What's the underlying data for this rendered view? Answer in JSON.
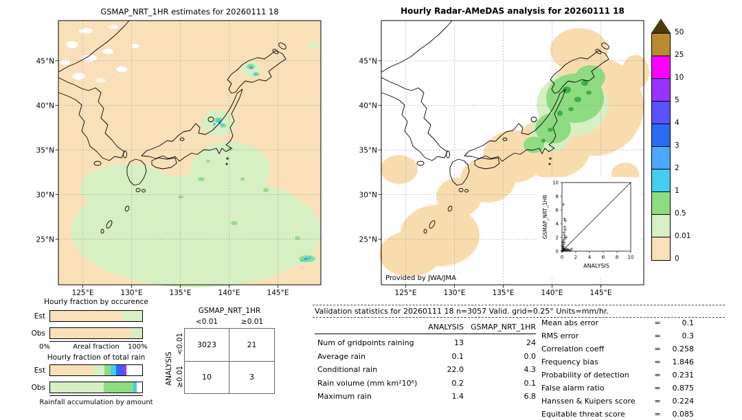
{
  "chart_data": [
    {
      "type": "map",
      "title": "GSMAP_NRT_1HR estimates for 20260111 18",
      "units": "mm/hr",
      "x_range_deg_east": [
        122.5,
        149.5
      ],
      "y_range_deg_north": [
        19.8,
        49.5
      ],
      "x_ticks_deg_east": [
        125,
        130,
        135,
        140,
        145
      ],
      "y_ticks_deg_north": [
        45,
        40,
        35,
        30,
        25
      ],
      "x_tick_labels": [
        "125°E",
        "130°E",
        "135°E",
        "140°E",
        "145°E"
      ],
      "y_tick_labels": [
        "45°N",
        "40°N",
        "35°N",
        "30°N",
        "25°N"
      ],
      "description": "GSMaP satellite hourly rain estimate: widespread 0.01-0.5 mm/hr over the southern ocean, small 1-3 mm/hr cells near 139E/38N, 142E/44N and 148E/23N; background 0-0.01 mm/hr"
    },
    {
      "type": "map",
      "title": "Hourly Radar-AMeDAS analysis for 20260111 18",
      "units": "mm/hr",
      "credit": "Provided by JWA/JMA",
      "x_range_deg_east": [
        122.5,
        149.5
      ],
      "y_range_deg_north": [
        19.8,
        49.5
      ],
      "x_ticks_deg_east": [
        125,
        130,
        135,
        140,
        145
      ],
      "y_ticks_deg_north": [
        45,
        40,
        35,
        30,
        25
      ],
      "x_tick_labels": [
        "125°E",
        "130°E",
        "135°E",
        "140°E",
        "145°E"
      ],
      "y_tick_labels": [
        "45°N",
        "40°N",
        "35°N",
        "30°N",
        "25°N"
      ],
      "description": "Radar-AMeDAS analysis: 0-0.01 mm/hr band along the Japanese archipelago, 0.5-1 mm/hr over northern Honshu and southern Hokkaido with embedded 1-2 mm/hr cells"
    },
    {
      "type": "bar",
      "title": "Hourly fraction by occurence",
      "xlabel": "Areal fraction",
      "x_tick_labels": [
        "0%",
        "100%"
      ],
      "xlim": [
        0,
        100
      ],
      "rows": [
        {
          "name": "Est",
          "segments": [
            {
              "label": "<0.01",
              "color": "#f9e0b8",
              "pct": 79
            },
            {
              "label": "0.01-0.5",
              "color": "#d6efc3",
              "pct": 21
            }
          ]
        },
        {
          "name": "Obs",
          "segments": [
            {
              "label": "<0.01",
              "color": "#f9e0b8",
              "pct": 88
            },
            {
              "label": "0.01-0.5",
              "color": "#d6efc3",
              "pct": 12
            }
          ]
        }
      ]
    },
    {
      "type": "bar",
      "title": "Hourly fraction of total rain",
      "xlabel": "Rainfall accumulation by amount",
      "xlim": [
        0,
        100
      ],
      "rows": [
        {
          "name": "Est",
          "segments": [
            {
              "label": "<0.01",
              "color": "#f9e0b8",
              "pct": 47
            },
            {
              "label": "0.01-0.5",
              "color": "#d6efc3",
              "pct": 12
            },
            {
              "label": "0.5-1",
              "color": "#8edc82",
              "pct": 7
            },
            {
              "label": "1-2",
              "color": "#45cdf1",
              "pct": 6
            },
            {
              "label": "2-3",
              "color": "#2b6bf3",
              "pct": 5
            },
            {
              "label": "3-4",
              "color": "#5a51ff",
              "pct": 3
            },
            {
              "label": "5-10",
              "color": "#9933ff",
              "pct": 3
            },
            {
              "label": "none",
              "color": "#ffffff",
              "pct": 17
            }
          ]
        },
        {
          "name": "Obs",
          "segments": [
            {
              "label": "0.01-0.5",
              "color": "#d6efc3",
              "pct": 58
            },
            {
              "label": "0.5-1",
              "color": "#8edc82",
              "pct": 32
            },
            {
              "label": "1-2",
              "color": "#45cdf1",
              "pct": 4
            },
            {
              "label": "none",
              "color": "#ffffff",
              "pct": 6
            }
          ]
        }
      ]
    },
    {
      "type": "scatter",
      "xlabel": "ANALYSIS",
      "ylabel": "GSMAP_NRT_1HR",
      "xlim": [
        0,
        10
      ],
      "ylim": [
        0,
        10
      ],
      "tick_labels": [
        "0",
        "2",
        "4",
        "6",
        "8",
        "10"
      ],
      "diagonal_line": true,
      "points": [
        [
          0.05,
          0.05
        ],
        [
          0.1,
          0.15
        ],
        [
          0.15,
          0.1
        ],
        [
          0.2,
          0.25
        ],
        [
          0.1,
          0.45
        ],
        [
          0.25,
          0.2
        ],
        [
          0.3,
          0.1
        ],
        [
          0.35,
          0.3
        ],
        [
          0.2,
          0.6
        ],
        [
          0.15,
          0.9
        ],
        [
          0.3,
          1.2
        ],
        [
          0.25,
          1.6
        ],
        [
          0.4,
          1.9
        ],
        [
          0.35,
          2.3
        ],
        [
          0.3,
          2.7
        ],
        [
          0.45,
          3.1
        ],
        [
          0.4,
          3.5
        ],
        [
          0.5,
          0.15
        ],
        [
          0.6,
          0.3
        ],
        [
          0.7,
          0.1
        ],
        [
          0.85,
          0.25
        ],
        [
          1.0,
          0.15
        ],
        [
          1.2,
          0.1
        ],
        [
          1.4,
          0.3
        ],
        [
          0.5,
          4.4
        ],
        [
          0.35,
          4.7
        ],
        [
          0.2,
          6.8
        ],
        [
          0.6,
          2.0
        ],
        [
          0.05,
          0.7
        ],
        [
          0.1,
          1.3
        ]
      ]
    }
  ],
  "colorbar": {
    "labels": [
      "50",
      "25",
      "10",
      "5",
      "4",
      "3",
      "2",
      "1",
      "0.5",
      "0.01",
      "0"
    ],
    "colors": [
      "#b98a2e",
      "#ff00ff",
      "#9933ff",
      "#5a51ff",
      "#2b6bf3",
      "#4aa9ff",
      "#45cdf1",
      "#8edc82",
      "#d6efc3",
      "#f9e0b8"
    ],
    "overflow_color": "#4a3b10",
    "units": "mm/hr"
  },
  "contingency": {
    "col_group": "GSMAP_NRT_1HR",
    "row_group": "ANALYSIS",
    "col_headers": [
      "<0.01",
      "≥0.01"
    ],
    "row_headers": [
      "<0.01",
      "≥0.01"
    ],
    "cells": [
      [
        "3023",
        "21"
      ],
      [
        "10",
        "3"
      ]
    ]
  },
  "stats": {
    "header": "Validation statistics for 20260111 18  n=3057 Valid. grid=0.25° Units=mm/hr.",
    "eq": "=",
    "col_headers": [
      "ANALYSIS",
      "GSMAP_NRT_1HR"
    ],
    "rows": [
      {
        "label": "Num of gridpoints raining",
        "analysis": "13",
        "gsmap": "24"
      },
      {
        "label": "Average rain",
        "analysis": "0.1",
        "gsmap": "0.0"
      },
      {
        "label": "Conditional rain",
        "analysis": "22.0",
        "gsmap": "4.3"
      },
      {
        "label": "Rain volume (mm km²10⁶)",
        "analysis": "0.2",
        "gsmap": "0.1"
      },
      {
        "label": "Maximum rain",
        "analysis": "1.4",
        "gsmap": "6.8"
      }
    ],
    "scores": [
      {
        "label": "Mean abs error",
        "value": "0.1"
      },
      {
        "label": "RMS error",
        "value": "0.3"
      },
      {
        "label": "Correlation coeff",
        "value": "0.258"
      },
      {
        "label": "Frequency bias",
        "value": "1.846"
      },
      {
        "label": "Probability of detection",
        "value": "0.231"
      },
      {
        "label": "False alarm ratio",
        "value": "0.875"
      },
      {
        "label": "Hanssen & Kuipers score",
        "value": "0.224"
      },
      {
        "label": "Equitable threat score",
        "value": "0.085"
      }
    ]
  }
}
